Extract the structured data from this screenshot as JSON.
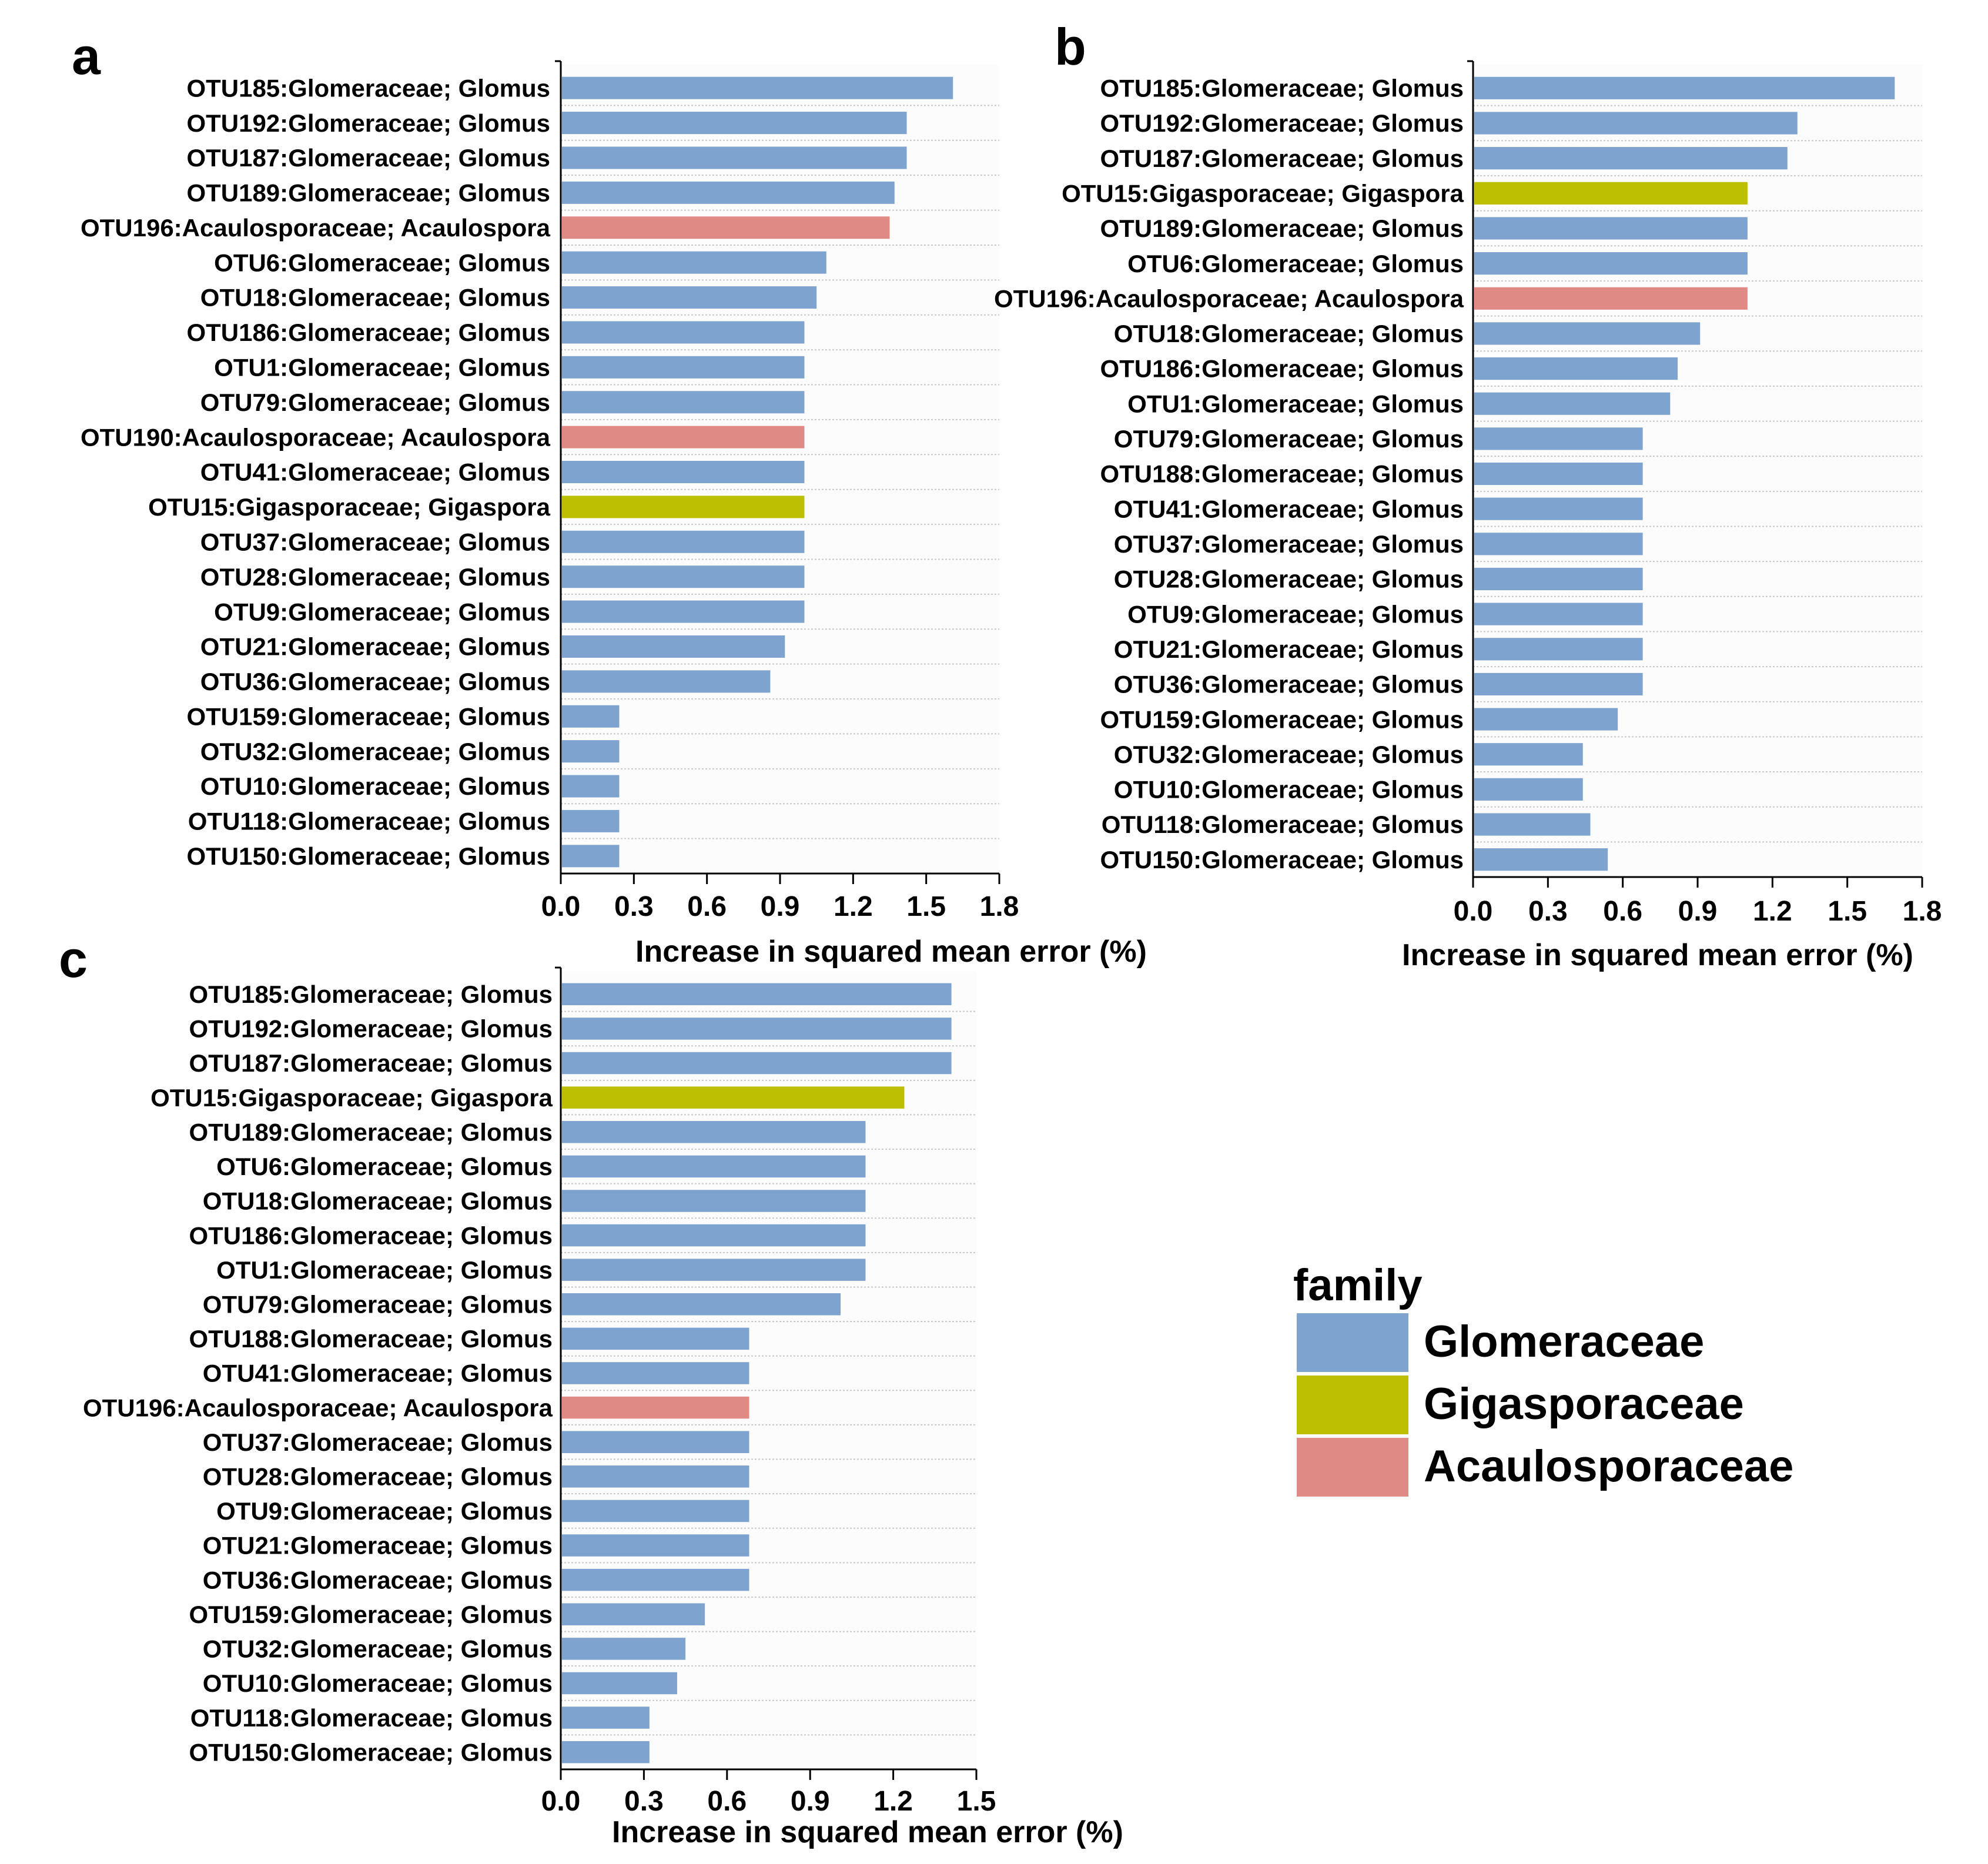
{
  "colors": {
    "Glomeraceae": "#7fa3cf",
    "Gigasporaceae": "#bcbe00",
    "Acaulosporaceae": "#e08a86",
    "plot_background": "#fcfcfc",
    "gridline": "#c8c8c8",
    "axis": "#000000",
    "text": "#000000"
  },
  "legend": {
    "title": "family",
    "entries": [
      "Glomeraceae",
      "Gigasporaceae",
      "Acaulosporaceae"
    ]
  },
  "chart_data": [
    {
      "panel": "a",
      "type": "bar",
      "orientation": "horizontal",
      "xlabel": "Increase in squared mean error (%)",
      "xlim": [
        0,
        1.8
      ],
      "xticks": [
        "0.0",
        "0.3",
        "0.6",
        "0.9",
        "1.2",
        "1.5",
        "1.8"
      ],
      "categories": [
        "OTU185:Glomeraceae; Glomus",
        "OTU192:Glomeraceae; Glomus",
        "OTU187:Glomeraceae; Glomus",
        "OTU189:Glomeraceae; Glomus",
        "OTU196:Acaulosporaceae; Acaulospora",
        "OTU6:Glomeraceae; Glomus",
        "OTU18:Glomeraceae; Glomus",
        "OTU186:Glomeraceae; Glomus",
        "OTU1:Glomeraceae; Glomus",
        "OTU79:Glomeraceae; Glomus",
        "OTU190:Acaulosporaceae; Acaulospora",
        "OTU41:Glomeraceae; Glomus",
        "OTU15:Gigasporaceae; Gigaspora",
        "OTU37:Glomeraceae; Glomus",
        "OTU28:Glomeraceae; Glomus",
        "OTU9:Glomeraceae; Glomus",
        "OTU21:Glomeraceae; Glomus",
        "OTU36:Glomeraceae; Glomus",
        "OTU159:Glomeraceae; Glomus",
        "OTU32:Glomeraceae; Glomus",
        "OTU10:Glomeraceae; Glomus",
        "OTU118:Glomeraceae; Glomus",
        "OTU150:Glomeraceae; Glomus"
      ],
      "values": [
        1.61,
        1.42,
        1.42,
        1.37,
        1.35,
        1.09,
        1.05,
        1.0,
        1.0,
        1.0,
        1.0,
        1.0,
        1.0,
        1.0,
        1.0,
        1.0,
        0.92,
        0.86,
        0.24,
        0.24,
        0.24,
        0.24,
        0.24
      ],
      "families": [
        "Glomeraceae",
        "Glomeraceae",
        "Glomeraceae",
        "Glomeraceae",
        "Acaulosporaceae",
        "Glomeraceae",
        "Glomeraceae",
        "Glomeraceae",
        "Glomeraceae",
        "Glomeraceae",
        "Acaulosporaceae",
        "Glomeraceae",
        "Gigasporaceae",
        "Glomeraceae",
        "Glomeraceae",
        "Glomeraceae",
        "Glomeraceae",
        "Glomeraceae",
        "Glomeraceae",
        "Glomeraceae",
        "Glomeraceae",
        "Glomeraceae",
        "Glomeraceae"
      ]
    },
    {
      "panel": "b",
      "type": "bar",
      "orientation": "horizontal",
      "xlabel": "Increase in squared mean error (%)",
      "xlim": [
        0,
        1.8
      ],
      "xticks": [
        "0.0",
        "0.3",
        "0.6",
        "0.9",
        "1.2",
        "1.5",
        "1.8"
      ],
      "categories": [
        "OTU185:Glomeraceae; Glomus",
        "OTU192:Glomeraceae; Glomus",
        "OTU187:Glomeraceae; Glomus",
        "OTU15:Gigasporaceae; Gigaspora",
        "OTU189:Glomeraceae; Glomus",
        "OTU6:Glomeraceae; Glomus",
        "OTU196:Acaulosporaceae; Acaulospora",
        "OTU18:Glomeraceae; Glomus",
        "OTU186:Glomeraceae; Glomus",
        "OTU1:Glomeraceae; Glomus",
        "OTU79:Glomeraceae; Glomus",
        "OTU188:Glomeraceae; Glomus",
        "OTU41:Glomeraceae; Glomus",
        "OTU37:Glomeraceae; Glomus",
        "OTU28:Glomeraceae; Glomus",
        "OTU9:Glomeraceae; Glomus",
        "OTU21:Glomeraceae; Glomus",
        "OTU36:Glomeraceae; Glomus",
        "OTU159:Glomeraceae; Glomus",
        "OTU32:Glomeraceae; Glomus",
        "OTU10:Glomeraceae; Glomus",
        "OTU118:Glomeraceae; Glomus",
        "OTU150:Glomeraceae; Glomus"
      ],
      "values": [
        1.69,
        1.3,
        1.26,
        1.1,
        1.1,
        1.1,
        1.1,
        0.91,
        0.82,
        0.79,
        0.68,
        0.68,
        0.68,
        0.68,
        0.68,
        0.68,
        0.68,
        0.68,
        0.58,
        0.44,
        0.44,
        0.47,
        0.54
      ],
      "families": [
        "Glomeraceae",
        "Glomeraceae",
        "Glomeraceae",
        "Gigasporaceae",
        "Glomeraceae",
        "Glomeraceae",
        "Acaulosporaceae",
        "Glomeraceae",
        "Glomeraceae",
        "Glomeraceae",
        "Glomeraceae",
        "Glomeraceae",
        "Glomeraceae",
        "Glomeraceae",
        "Glomeraceae",
        "Glomeraceae",
        "Glomeraceae",
        "Glomeraceae",
        "Glomeraceae",
        "Glomeraceae",
        "Glomeraceae",
        "Glomeraceae",
        "Glomeraceae"
      ]
    },
    {
      "panel": "c",
      "type": "bar",
      "orientation": "horizontal",
      "xlabel": "Increase in squared mean error (%)",
      "xlim": [
        0,
        1.5
      ],
      "xticks": [
        "0.0",
        "0.3",
        "0.6",
        "0.9",
        "1.2",
        "1.5"
      ],
      "categories": [
        "OTU185:Glomeraceae; Glomus",
        "OTU192:Glomeraceae; Glomus",
        "OTU187:Glomeraceae; Glomus",
        "OTU15:Gigasporaceae; Gigaspora",
        "OTU189:Glomeraceae; Glomus",
        "OTU6:Glomeraceae; Glomus",
        "OTU18:Glomeraceae; Glomus",
        "OTU186:Glomeraceae; Glomus",
        "OTU1:Glomeraceae; Glomus",
        "OTU79:Glomeraceae; Glomus",
        "OTU188:Glomeraceae; Glomus",
        "OTU41:Glomeraceae; Glomus",
        "OTU196:Acaulosporaceae; Acaulospora",
        "OTU37:Glomeraceae; Glomus",
        "OTU28:Glomeraceae; Glomus",
        "OTU9:Glomeraceae; Glomus",
        "OTU21:Glomeraceae; Glomus",
        "OTU36:Glomeraceae; Glomus",
        "OTU159:Glomeraceae; Glomus",
        "OTU32:Glomeraceae; Glomus",
        "OTU10:Glomeraceae; Glomus",
        "OTU118:Glomeraceae; Glomus",
        "OTU150:Glomeraceae; Glomus"
      ],
      "values": [
        1.41,
        1.41,
        1.41,
        1.24,
        1.1,
        1.1,
        1.1,
        1.1,
        1.1,
        1.01,
        0.68,
        0.68,
        0.68,
        0.68,
        0.68,
        0.68,
        0.68,
        0.68,
        0.52,
        0.45,
        0.42,
        0.32,
        0.32
      ],
      "families": [
        "Glomeraceae",
        "Glomeraceae",
        "Glomeraceae",
        "Gigasporaceae",
        "Glomeraceae",
        "Glomeraceae",
        "Glomeraceae",
        "Glomeraceae",
        "Glomeraceae",
        "Glomeraceae",
        "Glomeraceae",
        "Glomeraceae",
        "Acaulosporaceae",
        "Glomeraceae",
        "Glomeraceae",
        "Glomeraceae",
        "Glomeraceae",
        "Glomeraceae",
        "Glomeraceae",
        "Glomeraceae",
        "Glomeraceae",
        "Glomeraceae",
        "Glomeraceae"
      ]
    }
  ]
}
